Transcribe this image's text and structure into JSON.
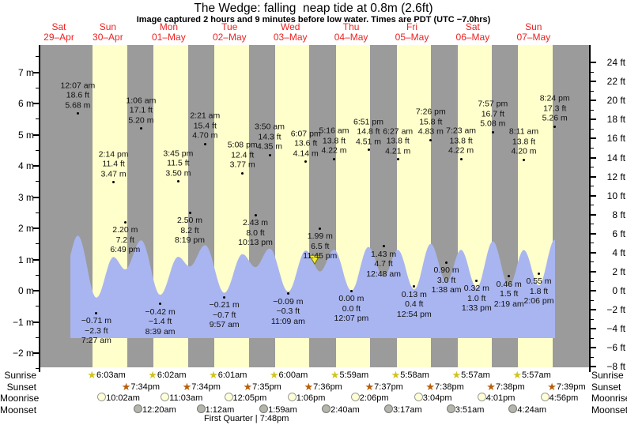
{
  "title": "The Wedge: falling  neap tide at 0.8m (2.6ft)",
  "subtitle": "Image captured 2 hours and 9 minutes before low water. Times are PDT (UTC −7.0hrs)",
  "side_rows": {
    "left": [
      "Sunrise",
      "Sunset",
      "Moonrise",
      "Moonset"
    ],
    "right": [
      "Sunrise",
      "Sunset",
      "Moonrise",
      "Moonset"
    ]
  },
  "left_axis": {
    "unit": "m",
    "labels": [
      "7 m",
      "6 m",
      "5 m",
      "4 m",
      "3 m",
      "2 m",
      "1 m",
      "0 m",
      "−1 m",
      "−2 m"
    ],
    "values": [
      7,
      6,
      5,
      4,
      3,
      2,
      1,
      0,
      -1,
      -2
    ]
  },
  "right_axis": {
    "unit": "ft",
    "labels": [
      "24 ft",
      "22 ft",
      "20 ft",
      "18 ft",
      "16 ft",
      "14 ft",
      "12 ft",
      "10 ft",
      "8 ft",
      "6 ft",
      "4 ft",
      "2 ft",
      "0 ft",
      "−2 ft",
      "−4 ft",
      "−6 ft",
      "−8 ft"
    ],
    "values": [
      24,
      22,
      20,
      18,
      16,
      14,
      12,
      10,
      8,
      6,
      4,
      2,
      0,
      -2,
      -4,
      -6,
      -8
    ]
  },
  "chart_data": {
    "type": "area",
    "title": "The Wedge: falling  neap tide at 0.8m (2.6ft)",
    "ylabel_left": "m",
    "ylabel_right": "ft",
    "y_left_range": [
      -2.45,
      7.87
    ],
    "grid": false,
    "days": [
      {
        "weekday": "Sat",
        "date": "29–Apr"
      },
      {
        "weekday": "Sun",
        "date": "30–Apr"
      },
      {
        "weekday": "Mon",
        "date": "01–May"
      },
      {
        "weekday": "Tue",
        "date": "02–May"
      },
      {
        "weekday": "Wed",
        "date": "03–May"
      },
      {
        "weekday": "Thu",
        "date": "04–May"
      },
      {
        "weekday": "Fri",
        "date": "05–May"
      },
      {
        "weekday": "Sat",
        "date": "06–May"
      },
      {
        "weekday": "Sun",
        "date": "07–May"
      }
    ],
    "tide_events": [
      {
        "day": 0,
        "date": "30-Apr",
        "kind": "high",
        "time": "12:07 am",
        "ft": "18.6 ft",
        "m": "5.68 m"
      },
      {
        "day": 0,
        "date": "30-Apr",
        "kind": "low",
        "time": "7:27 am",
        "ft": "−2.3 ft",
        "m": "−0.71 m"
      },
      {
        "day": 0,
        "date": "30-Apr",
        "kind": "high",
        "time": "2:14 pm",
        "ft": "11.4 ft",
        "m": "3.47 m"
      },
      {
        "day": 0,
        "date": "30-Apr",
        "kind": "low",
        "time": "6:49 pm",
        "ft": "7.2 ft",
        "m": "2.20 m"
      },
      {
        "day": 1,
        "date": "01-May",
        "kind": "high",
        "time": "1:06 am",
        "ft": "17.1 ft",
        "m": "5.20 m"
      },
      {
        "day": 1,
        "date": "01-May",
        "kind": "low",
        "time": "8:39 am",
        "ft": "−1.4 ft",
        "m": "−0.42 m"
      },
      {
        "day": 1,
        "date": "01-May",
        "kind": "high",
        "time": "3:45 pm",
        "ft": "11.5 ft",
        "m": "3.50 m"
      },
      {
        "day": 1,
        "date": "01-May",
        "kind": "low",
        "time": "8:19 pm",
        "ft": "8.2 ft",
        "m": "2.50 m"
      },
      {
        "day": 2,
        "date": "02-May",
        "kind": "high",
        "time": "2:21 am",
        "ft": "15.4 ft",
        "m": "4.70 m"
      },
      {
        "day": 2,
        "date": "02-May",
        "kind": "low",
        "time": "9:57 am",
        "ft": "−0.7 ft",
        "m": "−0.21 m"
      },
      {
        "day": 2,
        "date": "02-May",
        "kind": "high",
        "time": "5:08 pm",
        "ft": "12.4 ft",
        "m": "3.77 m"
      },
      {
        "day": 2,
        "date": "02-May",
        "kind": "low",
        "time": "10:13 pm",
        "ft": "8.0 ft",
        "m": "2.43 m"
      },
      {
        "day": 3,
        "date": "03-May",
        "kind": "high",
        "time": "3:50 am",
        "ft": "14.3 ft",
        "m": "4.35 m"
      },
      {
        "day": 3,
        "date": "03-May",
        "kind": "low",
        "time": "11:09 am",
        "ft": "−0.3 ft",
        "m": "−0.09 m"
      },
      {
        "day": 3,
        "date": "03-May",
        "kind": "high",
        "time": "6:07 pm",
        "ft": "13.6 ft",
        "m": "4.14 m"
      },
      {
        "day": 3,
        "date": "03-May",
        "kind": "low",
        "time": "11:45 pm",
        "ft": "6.5 ft",
        "m": "1.99 m"
      },
      {
        "day": 4,
        "date": "04-May",
        "kind": "high",
        "time": "5:16 am",
        "ft": "13.8 ft",
        "m": "4.22 m"
      },
      {
        "day": 4,
        "date": "04-May",
        "kind": "low",
        "time": "12:07 pm",
        "ft": "0.0 ft",
        "m": "0.00 m"
      },
      {
        "day": 4,
        "date": "04-May",
        "kind": "high",
        "time": "6:51 pm",
        "ft": "14.8 ft",
        "m": "4.51 m"
      },
      {
        "day": 5,
        "date": "05-May",
        "kind": "low",
        "time": "12:48 am",
        "ft": "4.7 ft",
        "m": "1.43 m"
      },
      {
        "day": 5,
        "date": "05-May",
        "kind": "high",
        "time": "6:27 am",
        "ft": "13.8 ft",
        "m": "4.21 m"
      },
      {
        "day": 5,
        "date": "05-May",
        "kind": "low",
        "time": "12:54 pm",
        "ft": "0.4 ft",
        "m": "0.13 m"
      },
      {
        "day": 5,
        "date": "05-May",
        "kind": "high",
        "time": "7:26 pm",
        "ft": "15.8 ft",
        "m": "4.83 m"
      },
      {
        "day": 6,
        "date": "06-May",
        "kind": "low",
        "time": "1:38 am",
        "ft": "3.0 ft",
        "m": "0.90 m"
      },
      {
        "day": 6,
        "date": "06-May",
        "kind": "high",
        "time": "7:23 am",
        "ft": "13.8 ft",
        "m": "4.22 m"
      },
      {
        "day": 6,
        "date": "06-May",
        "kind": "low",
        "time": "1:33 pm",
        "ft": "1.0 ft",
        "m": "0.32 m"
      },
      {
        "day": 6,
        "date": "06-May",
        "kind": "high",
        "time": "7:57 pm",
        "ft": "16.7 ft",
        "m": "5.08 m"
      },
      {
        "day": 7,
        "date": "07-May",
        "kind": "low",
        "time": "2:19 am",
        "ft": "1.5 ft",
        "m": "0.46 m"
      },
      {
        "day": 7,
        "date": "07-May",
        "kind": "high",
        "time": "8:11 am",
        "ft": "13.8 ft",
        "m": "4.20 m"
      },
      {
        "day": 7,
        "date": "07-May",
        "kind": "low",
        "time": "2:06 pm",
        "ft": "1.8 ft",
        "m": "0.55 m"
      },
      {
        "day": 7,
        "date": "07-May",
        "kind": "high",
        "time": "8:24 pm",
        "ft": "17.3 ft",
        "m": "5.26 m"
      }
    ],
    "sunrise": [
      {
        "day": 0,
        "time": "6:03am"
      },
      {
        "day": 1,
        "time": "6:02am"
      },
      {
        "day": 2,
        "time": "6:01am"
      },
      {
        "day": 3,
        "time": "6:00am"
      },
      {
        "day": 4,
        "time": "5:59am"
      },
      {
        "day": 5,
        "time": "5:58am"
      },
      {
        "day": 6,
        "time": "5:57am"
      },
      {
        "day": 7,
        "time": "5:57am"
      }
    ],
    "sunset": [
      {
        "day": 0,
        "time": "7:34pm"
      },
      {
        "day": 1,
        "time": "7:34pm"
      },
      {
        "day": 2,
        "time": "7:35pm"
      },
      {
        "day": 3,
        "time": "7:36pm"
      },
      {
        "day": 4,
        "time": "7:37pm"
      },
      {
        "day": 5,
        "time": "7:38pm"
      },
      {
        "day": 6,
        "time": "7:38pm"
      },
      {
        "day": 7,
        "time": "7:39pm"
      }
    ],
    "moonrise": [
      {
        "day": 0,
        "time": "10:02am"
      },
      {
        "day": 1,
        "time": "11:03am"
      },
      {
        "day": 2,
        "time": "12:05pm"
      },
      {
        "day": 3,
        "time": "1:06pm"
      },
      {
        "day": 4,
        "time": "2:06pm"
      },
      {
        "day": 5,
        "time": "3:04pm"
      },
      {
        "day": 6,
        "time": "4:01pm"
      },
      {
        "day": 7,
        "time": "4:56pm"
      }
    ],
    "moonset": [
      {
        "day": 1,
        "time": "12:20am"
      },
      {
        "day": 2,
        "time": "1:12am"
      },
      {
        "day": 3,
        "time": "1:59am"
      },
      {
        "day": 4,
        "time": "2:40am"
      },
      {
        "day": 5,
        "time": "3:17am"
      },
      {
        "day": 6,
        "time": "3:51am"
      },
      {
        "day": 7,
        "time": "4:24am"
      }
    ],
    "moon_phase": "First Quarter | 7:48pm",
    "current_time_marker": {
      "day": 3,
      "time": "9:36 pm"
    },
    "colors": {
      "night": "#9b9b9b",
      "daylight": "#ffffcc",
      "water": "#a9b5f0",
      "day_label": "#ee2222",
      "sunrise_star": "#cfc41f",
      "sunset_star": "#b85c08",
      "moonrise_fill": "#ffffd6",
      "moonrise_border": "#999999",
      "moonset_fill": "#b5b5ab",
      "moonset_border": "#777777",
      "marker_fill": "#f0ec32",
      "marker_border": "#6b6b00"
    }
  }
}
